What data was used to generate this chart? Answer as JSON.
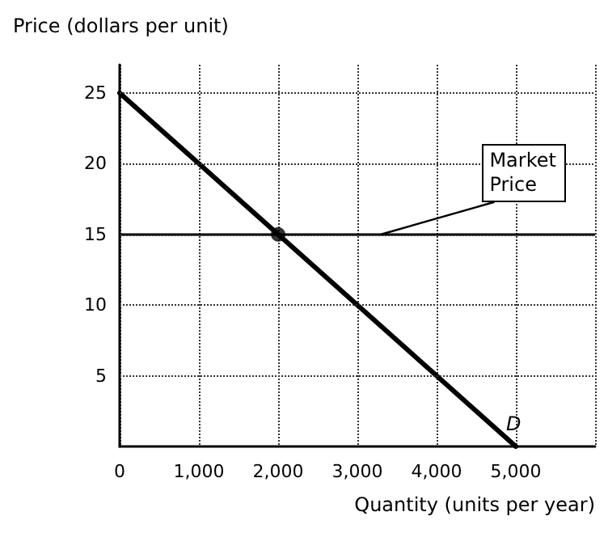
{
  "chart_data": {
    "type": "line",
    "xlabel": "Quantity (units per year)",
    "ylabel": "Price (dollars per unit)",
    "x": [
      0,
      5000
    ],
    "series": [
      {
        "name": "D",
        "color": "#000000",
        "values": [
          25,
          0
        ]
      },
      {
        "type": "scatter",
        "color": "#000000",
        "x": [
          2000
        ],
        "values": [
          15
        ],
        "marker": "circle"
      }
    ],
    "xlim": [
      0,
      6000
    ],
    "ylim": [
      0,
      27
    ],
    "xticks": [
      0,
      {
        "value": 1000,
        "label": "1,000"
      },
      {
        "value": 2000,
        "label": "2,000"
      },
      {
        "value": 3000,
        "label": "3,000"
      },
      {
        "value": 4000,
        "label": "4,000"
      },
      {
        "value": 5000,
        "label": "5,000"
      }
    ],
    "yticks": [
      5,
      10,
      15,
      20,
      25
    ],
    "ref_lines": [
      {
        "axis": "y",
        "value": 15,
        "label": "Market Price",
        "color": "#000000"
      }
    ],
    "grid": true,
    "line_style": "solid"
  }
}
